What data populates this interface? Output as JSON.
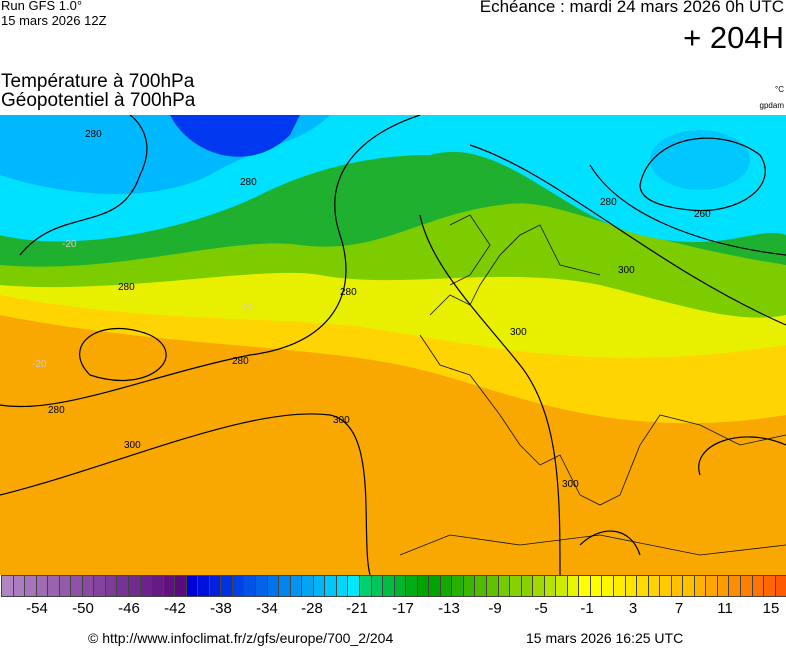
{
  "header": {
    "run_line1": "Run GFS 1.0°",
    "run_line2": "15 mars 2026 12Z",
    "echeance": "Echéance : mardi 24 mars 2026 0h UTC",
    "lead_time": "+ 204H",
    "title_line1": "Température à 700hPa",
    "title_line2": "Géopotentiel à 700hPa",
    "unit_temp": "°C",
    "unit_geo": "gpdam"
  },
  "map": {
    "contour_labels": [
      "280",
      "280",
      "280",
      "280",
      "280",
      "280",
      "260",
      "280",
      "300",
      "300",
      "300",
      "300",
      "300",
      "-20",
      "-20",
      "-20"
    ]
  },
  "colorbar": {
    "tick_labels": [
      "-54",
      "-50",
      "-46",
      "-42",
      "-38",
      "-34",
      "-28",
      "-21",
      "-17",
      "-13",
      "-9",
      "-5",
      "-1",
      "3",
      "7",
      "11",
      "15"
    ],
    "stops": [
      "#b184c4",
      "#5a0a7a",
      "#0000d8",
      "#00e8ff",
      "#00d070",
      "#00a400",
      "#88d000",
      "#ffff00",
      "#ffc000",
      "#ff5a00"
    ]
  },
  "footer": {
    "credit": "© http://www.infoclimat.fr/z/gfs/europe/700_2/204",
    "timestamp": "15 mars 2026 16:25 UTC"
  }
}
